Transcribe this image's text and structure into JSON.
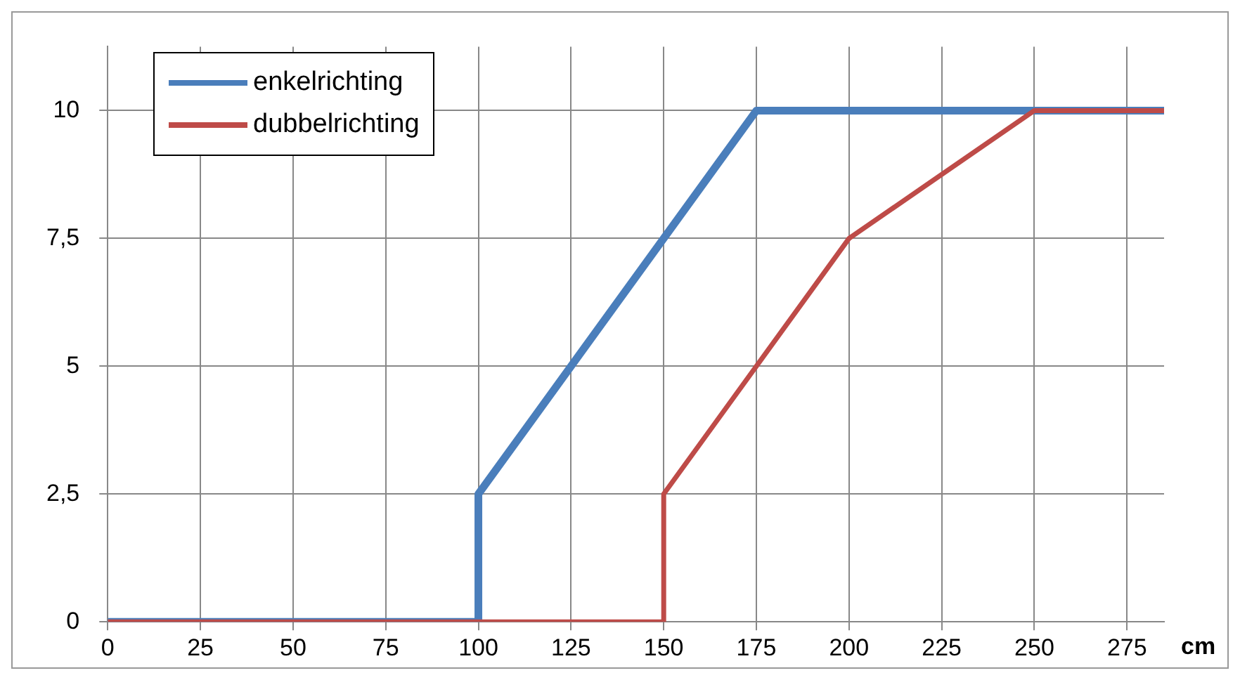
{
  "chart_data": {
    "type": "line",
    "xlabel": "cm",
    "xlim": [
      0,
      285
    ],
    "xticks": [
      0,
      25,
      50,
      75,
      100,
      125,
      150,
      175,
      200,
      225,
      250,
      275
    ],
    "ylim": [
      0,
      11.25
    ],
    "yticks": [
      0,
      {
        "value": 2.5,
        "label": "2,5"
      },
      5,
      {
        "value": 7.5,
        "label": "7,5"
      },
      10
    ],
    "grid": true,
    "legend": "top left",
    "marker": "none",
    "line_style": "solid",
    "series": [
      {
        "name": "enkelrichting",
        "color": "#4a7ebb",
        "x": [
          0,
          100,
          100,
          175,
          285
        ],
        "values": [
          0,
          0,
          2.5,
          10,
          10
        ]
      },
      {
        "name": "dubbelrichting",
        "color": "#be4b48",
        "x": [
          0,
          150,
          150,
          200,
          250,
          285
        ],
        "values": [
          0,
          0,
          2.5,
          7.5,
          10,
          10
        ]
      }
    ]
  }
}
